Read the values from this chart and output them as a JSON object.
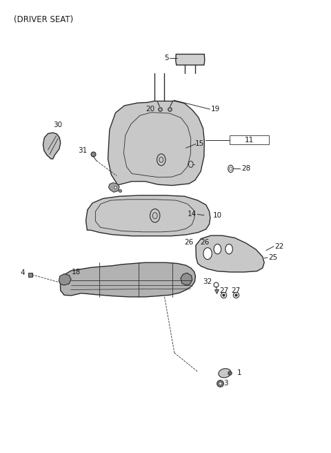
{
  "title": "(DRIVER SEAT)",
  "bg_color": "#ffffff",
  "line_color": "#2a2a2a",
  "text_color": "#1a1a1a",
  "face_color": "#c8c8c8",
  "dark_color": "#909090",
  "mid_color": "#b0b0b0"
}
